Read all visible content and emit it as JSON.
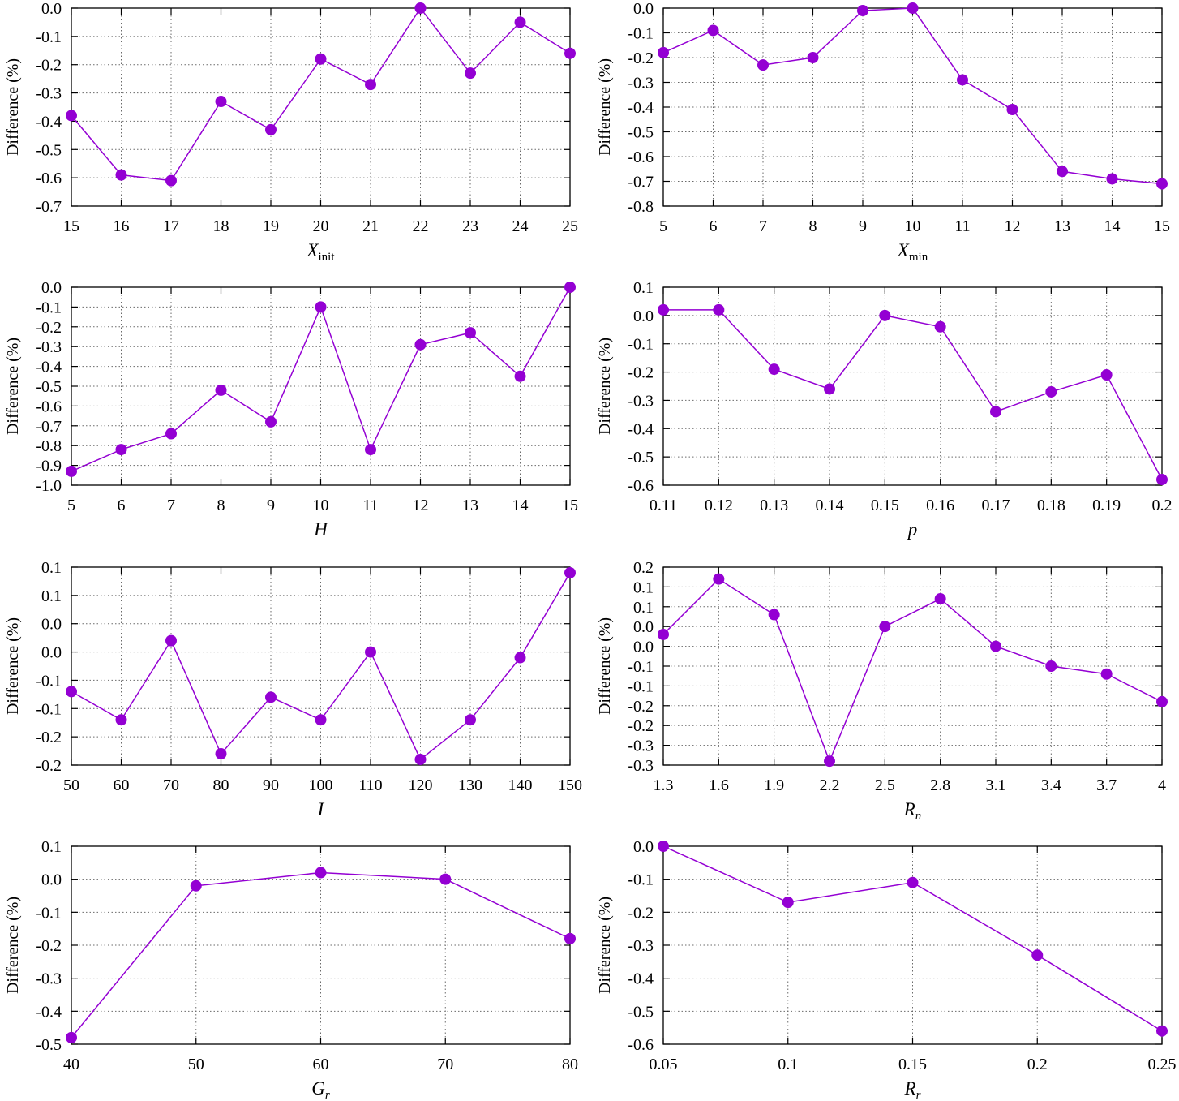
{
  "chart_data": [
    {
      "type": "line",
      "xlabel": {
        "text": "X",
        "sub": "init"
      },
      "ylabel": "Difference (%)",
      "x": [
        15,
        16,
        17,
        18,
        19,
        20,
        21,
        22,
        23,
        24,
        25
      ],
      "y": [
        -0.38,
        -0.59,
        -0.61,
        -0.33,
        -0.43,
        -0.18,
        -0.27,
        0.0,
        -0.23,
        -0.05,
        -0.16
      ],
      "xlim": [
        15,
        25
      ],
      "ylim": [
        -0.7,
        0.0
      ],
      "xticks": [
        15,
        16,
        17,
        18,
        19,
        20,
        21,
        22,
        23,
        24,
        25
      ],
      "xtick_labels": [
        "15",
        "16",
        "17",
        "18",
        "19",
        "20",
        "21",
        "22",
        "23",
        "24",
        "25"
      ],
      "yticks": [
        0.0,
        -0.1,
        -0.2,
        -0.3,
        -0.4,
        -0.5,
        -0.6,
        -0.7
      ],
      "ytick_labels": [
        "0.0",
        "-0.1",
        "-0.2",
        "-0.3",
        "-0.4",
        "-0.5",
        "-0.6",
        "-0.7"
      ],
      "grid": true,
      "color": "#9400D3"
    },
    {
      "type": "line",
      "xlabel": {
        "text": "X",
        "sub": "min"
      },
      "ylabel": "Difference (%)",
      "x": [
        5,
        6,
        7,
        8,
        9,
        10,
        11,
        12,
        13,
        14,
        15
      ],
      "y": [
        -0.18,
        -0.09,
        -0.23,
        -0.2,
        -0.01,
        0.0,
        -0.29,
        -0.41,
        -0.66,
        -0.69,
        -0.71
      ],
      "xlim": [
        5,
        15
      ],
      "ylim": [
        -0.8,
        0.0
      ],
      "xticks": [
        5,
        6,
        7,
        8,
        9,
        10,
        11,
        12,
        13,
        14,
        15
      ],
      "xtick_labels": [
        "5",
        "6",
        "7",
        "8",
        "9",
        "10",
        "11",
        "12",
        "13",
        "14",
        "15"
      ],
      "yticks": [
        0.0,
        -0.1,
        -0.2,
        -0.3,
        -0.4,
        -0.5,
        -0.6,
        -0.7,
        -0.8
      ],
      "ytick_labels": [
        "0.0",
        "-0.1",
        "-0.2",
        "-0.3",
        "-0.4",
        "-0.5",
        "-0.6",
        "-0.7",
        "-0.8"
      ],
      "grid": true,
      "color": "#9400D3"
    },
    {
      "type": "line",
      "xlabel": {
        "text": "H"
      },
      "ylabel": "Difference (%)",
      "x": [
        5,
        6,
        7,
        8,
        9,
        10,
        11,
        12,
        13,
        14,
        15
      ],
      "y": [
        -0.93,
        -0.82,
        -0.74,
        -0.52,
        -0.68,
        -0.1,
        -0.82,
        -0.29,
        -0.23,
        -0.45,
        0.0
      ],
      "xlim": [
        5,
        15
      ],
      "ylim": [
        -1.0,
        0.0
      ],
      "xticks": [
        5,
        6,
        7,
        8,
        9,
        10,
        11,
        12,
        13,
        14,
        15
      ],
      "xtick_labels": [
        "5",
        "6",
        "7",
        "8",
        "9",
        "10",
        "11",
        "12",
        "13",
        "14",
        "15"
      ],
      "yticks": [
        0.0,
        -0.1,
        -0.2,
        -0.3,
        -0.4,
        -0.5,
        -0.6,
        -0.7,
        -0.8,
        -0.9,
        -1.0
      ],
      "ytick_labels": [
        "0.0",
        "-0.1",
        "-0.2",
        "-0.3",
        "-0.4",
        "-0.5",
        "-0.6",
        "-0.7",
        "-0.8",
        "-0.9",
        "-1.0"
      ],
      "grid": true,
      "color": "#9400D3"
    },
    {
      "type": "line",
      "xlabel": {
        "text": "p"
      },
      "ylabel": "Difference (%)",
      "x": [
        0.11,
        0.12,
        0.13,
        0.14,
        0.15,
        0.16,
        0.17,
        0.18,
        0.19,
        0.2
      ],
      "y": [
        0.02,
        0.02,
        -0.19,
        -0.26,
        0.0,
        -0.04,
        -0.34,
        -0.27,
        -0.21,
        -0.58
      ],
      "xlim": [
        0.11,
        0.2
      ],
      "ylim": [
        -0.6,
        0.1
      ],
      "xticks": [
        0.11,
        0.12,
        0.13,
        0.14,
        0.15,
        0.16,
        0.17,
        0.18,
        0.19,
        0.2
      ],
      "xtick_labels": [
        "0.11",
        "0.12",
        "0.13",
        "0.14",
        "0.15",
        "0.16",
        "0.17",
        "0.18",
        "0.19",
        "0.2"
      ],
      "yticks": [
        0.1,
        0.0,
        -0.1,
        -0.2,
        -0.3,
        -0.4,
        -0.5,
        -0.6
      ],
      "ytick_labels": [
        "0.1",
        "0.0",
        "-0.1",
        "-0.2",
        "-0.3",
        "-0.4",
        "-0.5",
        "-0.6"
      ],
      "grid": true,
      "color": "#9400D3"
    },
    {
      "type": "line",
      "xlabel": {
        "text": "I"
      },
      "ylabel": "Difference (%)",
      "x": [
        50,
        60,
        70,
        80,
        90,
        100,
        110,
        120,
        130,
        140,
        150
      ],
      "y": [
        -0.07,
        -0.12,
        0.02,
        -0.18,
        -0.08,
        -0.12,
        0.0,
        -0.19,
        -0.12,
        -0.01,
        0.14
      ],
      "xlim": [
        50,
        150
      ],
      "ylim": [
        -0.2,
        0.15
      ],
      "xticks": [
        50,
        60,
        70,
        80,
        90,
        100,
        110,
        120,
        130,
        140,
        150
      ],
      "xtick_labels": [
        "50",
        "60",
        "70",
        "80",
        "90",
        "100",
        "110",
        "120",
        "130",
        "140",
        "150"
      ],
      "yticks": [
        0.15,
        0.1,
        0.05,
        0.0,
        -0.05,
        -0.1,
        -0.15,
        -0.2
      ],
      "ytick_labels": [
        "0.1",
        "0.1",
        "0.0",
        "0.0",
        "-0.1",
        "-0.1",
        "-0.2",
        "-0.2"
      ],
      "grid": true,
      "color": "#9400D3"
    },
    {
      "type": "line",
      "xlabel": {
        "text": "R",
        "sub": "n"
      },
      "ylabel": "Difference (%)",
      "x": [
        1.3,
        1.6,
        1.9,
        2.2,
        2.5,
        2.8,
        3.1,
        3.4,
        3.7,
        4
      ],
      "y": [
        0.03,
        0.17,
        0.08,
        -0.29,
        0.05,
        0.12,
        0.0,
        -0.05,
        -0.07,
        -0.14
      ],
      "xlim": [
        1.3,
        4
      ],
      "ylim": [
        -0.3,
        0.2
      ],
      "xticks": [
        1.3,
        1.6,
        1.9,
        2.2,
        2.5,
        2.8,
        3.1,
        3.4,
        3.7,
        4
      ],
      "xtick_labels": [
        "1.3",
        "1.6",
        "1.9",
        "2.2",
        "2.5",
        "2.8",
        "3.1",
        "3.4",
        "3.7",
        "4"
      ],
      "yticks": [
        0.2,
        0.15,
        0.1,
        0.05,
        0.0,
        -0.05,
        -0.1,
        -0.15,
        -0.2,
        -0.25,
        -0.3
      ],
      "ytick_labels": [
        "0.2",
        "0.1",
        "0.1",
        "0.0",
        "0.0",
        "-0.1",
        "-0.1",
        "-0.2",
        "-0.2",
        "-0.3",
        "-0.3"
      ],
      "grid": true,
      "color": "#9400D3"
    },
    {
      "type": "line",
      "xlabel": {
        "text": "G",
        "sub": "r"
      },
      "ylabel": "Difference (%)",
      "x": [
        40,
        50,
        60,
        70,
        80
      ],
      "y": [
        -0.48,
        -0.02,
        0.02,
        0.0,
        -0.18
      ],
      "xlim": [
        40,
        80
      ],
      "ylim": [
        -0.5,
        0.1
      ],
      "xticks": [
        40,
        50,
        60,
        70,
        80
      ],
      "xtick_labels": [
        "40",
        "50",
        "60",
        "70",
        "80"
      ],
      "yticks": [
        0.1,
        0.0,
        -0.1,
        -0.2,
        -0.3,
        -0.4,
        -0.5
      ],
      "ytick_labels": [
        "0.1",
        "0.0",
        "-0.1",
        "-0.2",
        "-0.3",
        "-0.4",
        "-0.5"
      ],
      "grid": true,
      "color": "#9400D3"
    },
    {
      "type": "line",
      "xlabel": {
        "text": "R",
        "sub": "r"
      },
      "ylabel": "Difference (%)",
      "x": [
        0.05,
        0.1,
        0.15,
        0.2,
        0.25
      ],
      "y": [
        0.0,
        -0.17,
        -0.11,
        -0.33,
        -0.56
      ],
      "xlim": [
        0.05,
        0.25
      ],
      "ylim": [
        -0.6,
        0.0
      ],
      "xticks": [
        0.05,
        0.1,
        0.15,
        0.2,
        0.25
      ],
      "xtick_labels": [
        "0.05",
        "0.1",
        "0.15",
        "0.2",
        "0.25"
      ],
      "yticks": [
        0.0,
        -0.1,
        -0.2,
        -0.3,
        -0.4,
        -0.5,
        -0.6
      ],
      "ytick_labels": [
        "0.0",
        "-0.1",
        "-0.2",
        "-0.3",
        "-0.4",
        "-0.5",
        "-0.6"
      ],
      "grid": true,
      "color": "#9400D3"
    }
  ]
}
